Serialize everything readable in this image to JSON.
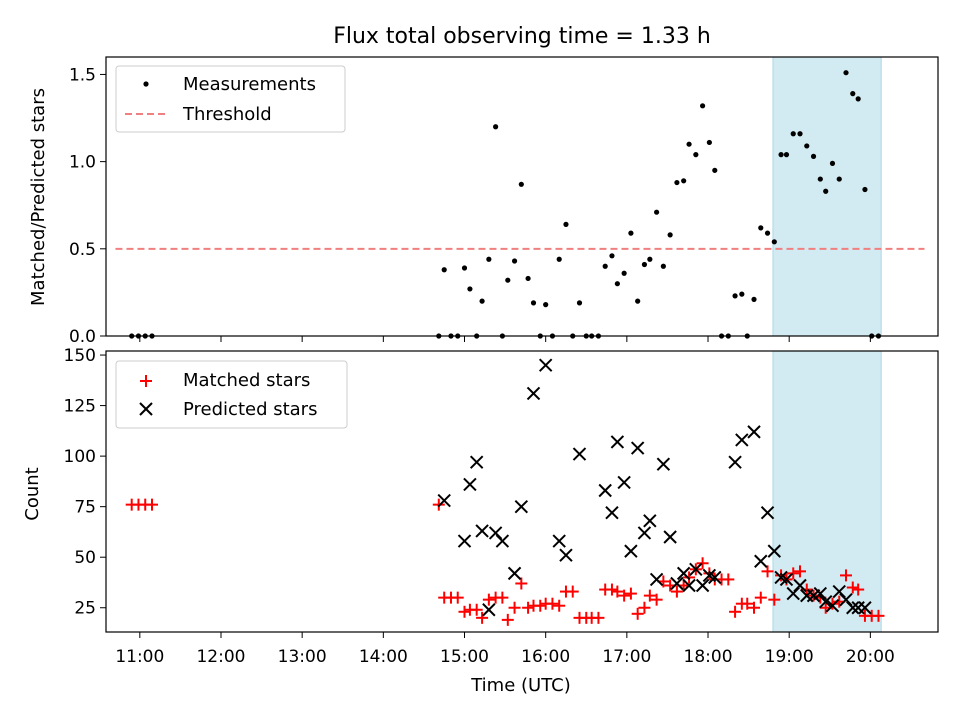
{
  "chart_data": [
    {
      "type": "scatter",
      "title": "Flux total observing time = 1.33 h",
      "xlabel": "",
      "ylabel": "Matched/Predicted stars",
      "xlim": [
        "10:35",
        "20:50"
      ],
      "ylim": [
        0,
        1.6
      ],
      "yticks": [
        "0.0",
        "0.5",
        "1.0",
        "1.5"
      ],
      "highlight_span": [
        "18:48",
        "20:08"
      ],
      "highlight_color": "#add8e6",
      "legend": {
        "placement": "top-left",
        "entries": [
          "Measurements",
          "Threshold"
        ]
      },
      "series": [
        {
          "name": "Measurements",
          "marker": "dot",
          "color": "#000000",
          "points": [
            [
              "10:54",
              0
            ],
            [
              "10:59",
              0
            ],
            [
              "11:04",
              0
            ],
            [
              "11:09",
              0
            ],
            [
              "14:41",
              0
            ],
            [
              "14:45",
              0.38
            ],
            [
              "14:50",
              0
            ],
            [
              "14:55",
              0
            ],
            [
              "15:00",
              0.39
            ],
            [
              "15:04",
              0.27
            ],
            [
              "15:09",
              0
            ],
            [
              "15:13",
              0.2
            ],
            [
              "15:18",
              0.44
            ],
            [
              "15:23",
              1.2
            ],
            [
              "15:28",
              0
            ],
            [
              "15:32",
              0.32
            ],
            [
              "15:37",
              0.43
            ],
            [
              "15:42",
              0.87
            ],
            [
              "15:47",
              0.33
            ],
            [
              "15:51",
              0.19
            ],
            [
              "15:56",
              0
            ],
            [
              "16:00",
              0.18
            ],
            [
              "16:05",
              0
            ],
            [
              "16:10",
              0.44
            ],
            [
              "16:15",
              0.64
            ],
            [
              "16:20",
              0
            ],
            [
              "16:25",
              0.19
            ],
            [
              "16:30",
              0
            ],
            [
              "16:34",
              0
            ],
            [
              "16:39",
              0
            ],
            [
              "16:44",
              0.4
            ],
            [
              "16:49",
              0.46
            ],
            [
              "16:53",
              0.3
            ],
            [
              "16:58",
              0.36
            ],
            [
              "17:03",
              0.59
            ],
            [
              "17:08",
              0.2
            ],
            [
              "17:13",
              0.41
            ],
            [
              "17:17",
              0.44
            ],
            [
              "17:22",
              0.71
            ],
            [
              "17:27",
              0.4
            ],
            [
              "17:32",
              0.58
            ],
            [
              "17:37",
              0.88
            ],
            [
              "17:42",
              0.89
            ],
            [
              "17:46",
              1.1
            ],
            [
              "17:51",
              1.04
            ],
            [
              "17:56",
              1.32
            ],
            [
              "18:01",
              1.11
            ],
            [
              "18:05",
              0.95
            ],
            [
              "18:10",
              0
            ],
            [
              "18:15",
              0
            ],
            [
              "18:20",
              0.23
            ],
            [
              "18:25",
              0.24
            ],
            [
              "18:29",
              0
            ],
            [
              "18:34",
              0.21
            ],
            [
              "18:39",
              0.62
            ],
            [
              "18:44",
              0.59
            ],
            [
              "18:49",
              0.54
            ],
            [
              "18:54",
              1.04
            ],
            [
              "18:58",
              1.04
            ],
            [
              "19:03",
              1.16
            ],
            [
              "19:08",
              1.16
            ],
            [
              "19:13",
              1.09
            ],
            [
              "19:18",
              1.03
            ],
            [
              "19:23",
              0.9
            ],
            [
              "19:27",
              0.83
            ],
            [
              "19:32",
              0.99
            ],
            [
              "19:37",
              0.9
            ],
            [
              "19:42",
              1.51
            ],
            [
              "19:47",
              1.39
            ],
            [
              "19:51",
              1.36
            ],
            [
              "19:56",
              0.84
            ],
            [
              "20:01",
              0
            ],
            [
              "20:06",
              0
            ]
          ]
        },
        {
          "name": "Threshold",
          "style": "dashed",
          "color": "#f08080",
          "x": [
            "10:42",
            "20:40"
          ],
          "y": [
            0.5,
            0.5
          ]
        }
      ]
    },
    {
      "type": "scatter",
      "title": "",
      "xlabel": "Time (UTC)",
      "ylabel": "Count",
      "xlim": [
        "10:35",
        "20:50"
      ],
      "ylim": [
        13,
        152
      ],
      "xticks": [
        "11:00",
        "12:00",
        "13:00",
        "14:00",
        "15:00",
        "16:00",
        "17:00",
        "18:00",
        "19:00",
        "20:00"
      ],
      "yticks": [
        "25",
        "50",
        "75",
        "100",
        "125",
        "150"
      ],
      "highlight_span": [
        "18:48",
        "20:08"
      ],
      "highlight_color": "#add8e6",
      "legend": {
        "placement": "top-left",
        "entries": [
          "Matched stars",
          "Predicted stars"
        ]
      },
      "series": [
        {
          "name": "Matched stars",
          "marker": "plus",
          "color": "#ff0000",
          "points": [
            [
              "10:54",
              76
            ],
            [
              "10:59",
              76
            ],
            [
              "11:04",
              76
            ],
            [
              "11:09",
              76
            ],
            [
              "14:41",
              76
            ],
            [
              "14:45",
              30
            ],
            [
              "14:50",
              30
            ],
            [
              "14:55",
              30
            ],
            [
              "15:00",
              23
            ],
            [
              "15:04",
              24
            ],
            [
              "15:09",
              24
            ],
            [
              "15:13",
              20
            ],
            [
              "15:18",
              29
            ],
            [
              "15:23",
              30
            ],
            [
              "15:28",
              30
            ],
            [
              "15:32",
              19
            ],
            [
              "15:37",
              25
            ],
            [
              "15:42",
              37
            ],
            [
              "15:47",
              25
            ],
            [
              "15:51",
              26
            ],
            [
              "15:56",
              26
            ],
            [
              "16:00",
              27
            ],
            [
              "16:05",
              27
            ],
            [
              "16:10",
              26
            ],
            [
              "16:15",
              33
            ],
            [
              "16:20",
              33
            ],
            [
              "16:25",
              20
            ],
            [
              "16:30",
              20
            ],
            [
              "16:34",
              20
            ],
            [
              "16:39",
              20
            ],
            [
              "16:44",
              34
            ],
            [
              "16:49",
              34
            ],
            [
              "16:53",
              33
            ],
            [
              "16:58",
              31
            ],
            [
              "17:03",
              32
            ],
            [
              "17:08",
              22
            ],
            [
              "17:13",
              25
            ],
            [
              "17:17",
              31
            ],
            [
              "17:22",
              29
            ],
            [
              "17:27",
              38
            ],
            [
              "17:32",
              36
            ],
            [
              "17:37",
              33
            ],
            [
              "17:42",
              36
            ],
            [
              "17:46",
              40
            ],
            [
              "17:51",
              44
            ],
            [
              "17:56",
              47
            ],
            [
              "18:01",
              42
            ],
            [
              "18:05",
              39
            ],
            [
              "18:10",
              39
            ],
            [
              "18:15",
              39
            ],
            [
              "18:20",
              23
            ],
            [
              "18:25",
              27
            ],
            [
              "18:29",
              27
            ],
            [
              "18:34",
              25
            ],
            [
              "18:39",
              30
            ],
            [
              "18:44",
              43
            ],
            [
              "18:49",
              29
            ],
            [
              "18:54",
              41
            ],
            [
              "18:58",
              39
            ],
            [
              "19:03",
              42
            ],
            [
              "19:08",
              43
            ],
            [
              "19:13",
              34
            ],
            [
              "19:18",
              31
            ],
            [
              "19:23",
              30
            ],
            [
              "19:27",
              25
            ],
            [
              "19:32",
              27
            ],
            [
              "19:37",
              28
            ],
            [
              "19:42",
              41
            ],
            [
              "19:47",
              35
            ],
            [
              "19:51",
              34
            ],
            [
              "19:56",
              21
            ],
            [
              "20:01",
              21
            ],
            [
              "20:06",
              21
            ]
          ]
        },
        {
          "name": "Predicted stars",
          "marker": "x",
          "color": "#000000",
          "points": [
            [
              "14:45",
              78
            ],
            [
              "15:00",
              58
            ],
            [
              "15:04",
              86
            ],
            [
              "15:09",
              97
            ],
            [
              "15:13",
              63
            ],
            [
              "15:18",
              24
            ],
            [
              "15:23",
              62
            ],
            [
              "15:28",
              58
            ],
            [
              "15:37",
              42
            ],
            [
              "15:42",
              75
            ],
            [
              "15:51",
              131
            ],
            [
              "16:00",
              145
            ],
            [
              "16:10",
              58
            ],
            [
              "16:15",
              51
            ],
            [
              "16:25",
              101
            ],
            [
              "16:44",
              83
            ],
            [
              "16:49",
              72
            ],
            [
              "16:53",
              107
            ],
            [
              "16:58",
              87
            ],
            [
              "17:03",
              53
            ],
            [
              "17:08",
              104
            ],
            [
              "17:13",
              62
            ],
            [
              "17:17",
              68
            ],
            [
              "17:22",
              39
            ],
            [
              "17:27",
              96
            ],
            [
              "17:32",
              60
            ],
            [
              "17:37",
              37
            ],
            [
              "17:42",
              42
            ],
            [
              "17:46",
              36
            ],
            [
              "17:51",
              44
            ],
            [
              "17:56",
              36
            ],
            [
              "18:01",
              41
            ],
            [
              "18:05",
              40
            ],
            [
              "18:20",
              97
            ],
            [
              "18:25",
              108
            ],
            [
              "18:34",
              112
            ],
            [
              "18:39",
              48
            ],
            [
              "18:44",
              72
            ],
            [
              "18:49",
              53
            ],
            [
              "18:54",
              40
            ],
            [
              "18:58",
              39
            ],
            [
              "19:03",
              32
            ],
            [
              "19:08",
              36
            ],
            [
              "19:13",
              31
            ],
            [
              "19:18",
              31
            ],
            [
              "19:23",
              32
            ],
            [
              "19:27",
              28
            ],
            [
              "19:32",
              26
            ],
            [
              "19:37",
              33
            ],
            [
              "19:42",
              29
            ],
            [
              "19:47",
              25
            ],
            [
              "19:51",
              25
            ],
            [
              "19:56",
              25
            ]
          ]
        }
      ]
    }
  ]
}
